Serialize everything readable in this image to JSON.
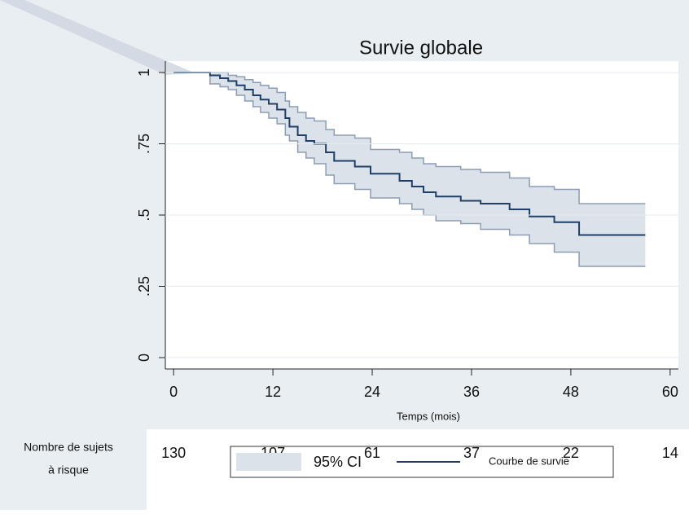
{
  "chart_data": {
    "type": "survival",
    "title": "Survie globale",
    "xlabel": "Temps (mois)",
    "xlim": [
      -1,
      61
    ],
    "ylim": [
      -0.04,
      1.04
    ],
    "xticks": [
      0,
      12,
      24,
      36,
      48,
      60
    ],
    "yticks": [
      0,
      {
        "value": 0.25,
        "label": ".25"
      },
      {
        "value": 0.5,
        "label": ".5"
      },
      {
        "value": 0.75,
        "label": ".75"
      },
      1
    ],
    "grid": true,
    "x": [
      0,
      4.4,
      5.6,
      6.6,
      7.6,
      8.6,
      9.6,
      10.5,
      11.5,
      12.5,
      13.5,
      14,
      15,
      16,
      17,
      18.4,
      19.4,
      21.9,
      23.8,
      27.3,
      28.8,
      30.2,
      31.7,
      34.7,
      37.1,
      40.6,
      43,
      46,
      49,
      57
    ],
    "series": [
      {
        "name": "Courbe de survie",
        "color": "#1f3f66",
        "values": [
          1,
          0.99,
          0.98,
          0.97,
          0.955,
          0.94,
          0.92,
          0.905,
          0.89,
          0.87,
          0.84,
          0.81,
          0.78,
          0.76,
          0.75,
          0.72,
          0.69,
          0.67,
          0.645,
          0.62,
          0.6,
          0.58,
          0.565,
          0.55,
          0.54,
          0.52,
          0.495,
          0.475,
          0.43,
          0.43
        ]
      }
    ],
    "ci": {
      "name": "95% CI",
      "color": "#dce2ea",
      "edge_color": "#8c9db3",
      "upper": [
        1,
        1,
        1,
        0.99,
        0.985,
        0.975,
        0.965,
        0.955,
        0.945,
        0.93,
        0.9,
        0.88,
        0.86,
        0.84,
        0.83,
        0.8,
        0.78,
        0.77,
        0.73,
        0.72,
        0.7,
        0.68,
        0.67,
        0.66,
        0.65,
        0.63,
        0.6,
        0.59,
        0.54,
        0.54
      ],
      "lower": [
        1,
        0.96,
        0.95,
        0.94,
        0.92,
        0.9,
        0.88,
        0.86,
        0.84,
        0.82,
        0.78,
        0.76,
        0.72,
        0.7,
        0.68,
        0.64,
        0.61,
        0.59,
        0.56,
        0.54,
        0.52,
        0.5,
        0.48,
        0.47,
        0.45,
        0.43,
        0.4,
        0.37,
        0.32,
        0.32
      ]
    },
    "risk_table": {
      "label": [
        "Nombre de sujets",
        "à risque"
      ],
      "counts": [
        130,
        107,
        61,
        37,
        22,
        14
      ]
    }
  }
}
